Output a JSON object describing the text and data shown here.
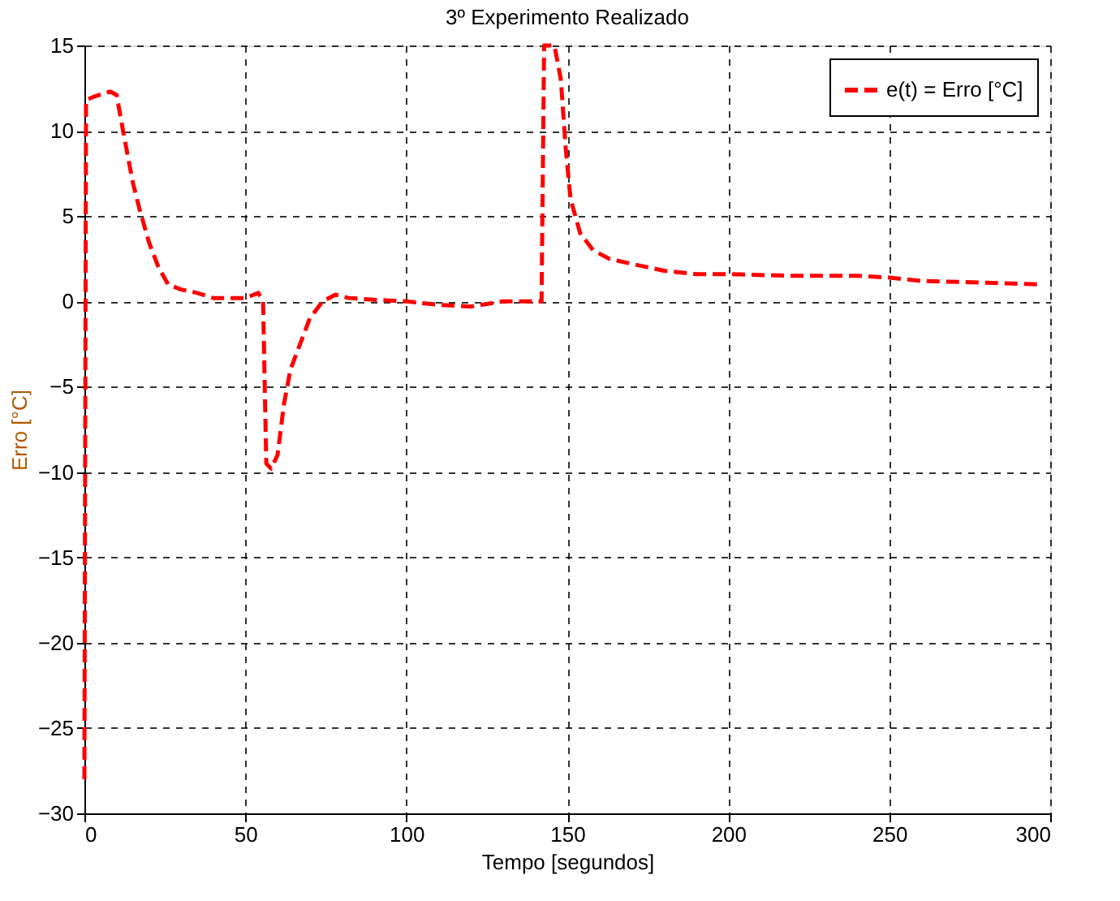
{
  "chart_data": {
    "type": "line",
    "title": "3º Experimento Realizado",
    "xlabel": "Tempo [segundos]",
    "ylabel": "Erro [°C]",
    "xlim": [
      0,
      300
    ],
    "xticks": [
      0,
      50,
      100,
      150,
      200,
      250,
      300
    ],
    "ylim": [
      -30,
      15
    ],
    "yticks": [
      -30,
      -25,
      -20,
      -15,
      -10,
      -5,
      0,
      5,
      10,
      15
    ],
    "grid": true,
    "legend": "top right",
    "line_style": "dashed",
    "marker": "none",
    "series": [
      {
        "name": "e(t) = Erro [°C]",
        "color": "#ff0000",
        "x": [
          0,
          0.5,
          3,
          8,
          10,
          12,
          15,
          17,
          20,
          23,
          26,
          30,
          35,
          40,
          50,
          54,
          55.5,
          56.5,
          58,
          60,
          62,
          64,
          67,
          70,
          74,
          78,
          82,
          90,
          100,
          110,
          120,
          130,
          140,
          142,
          142.8,
          146,
          148,
          149.5,
          151,
          154,
          158,
          163,
          170,
          180,
          190,
          200,
          220,
          240,
          250,
          260,
          280,
          296
        ],
        "values": [
          -28,
          11.8,
          12,
          12.3,
          12.1,
          10,
          7,
          5.5,
          3.5,
          2,
          1,
          0.7,
          0.5,
          0.2,
          0.2,
          0.5,
          0,
          -9.5,
          -9.8,
          -9,
          -6,
          -4,
          -2.5,
          -1,
          0,
          0.4,
          0.2,
          0.1,
          0,
          -0.2,
          -0.3,
          0,
          0,
          0,
          15,
          15,
          13,
          9,
          6,
          4,
          3,
          2.5,
          2.2,
          1.8,
          1.6,
          1.6,
          1.5,
          1.5,
          1.4,
          1.2,
          1.1,
          1.0
        ]
      }
    ]
  }
}
